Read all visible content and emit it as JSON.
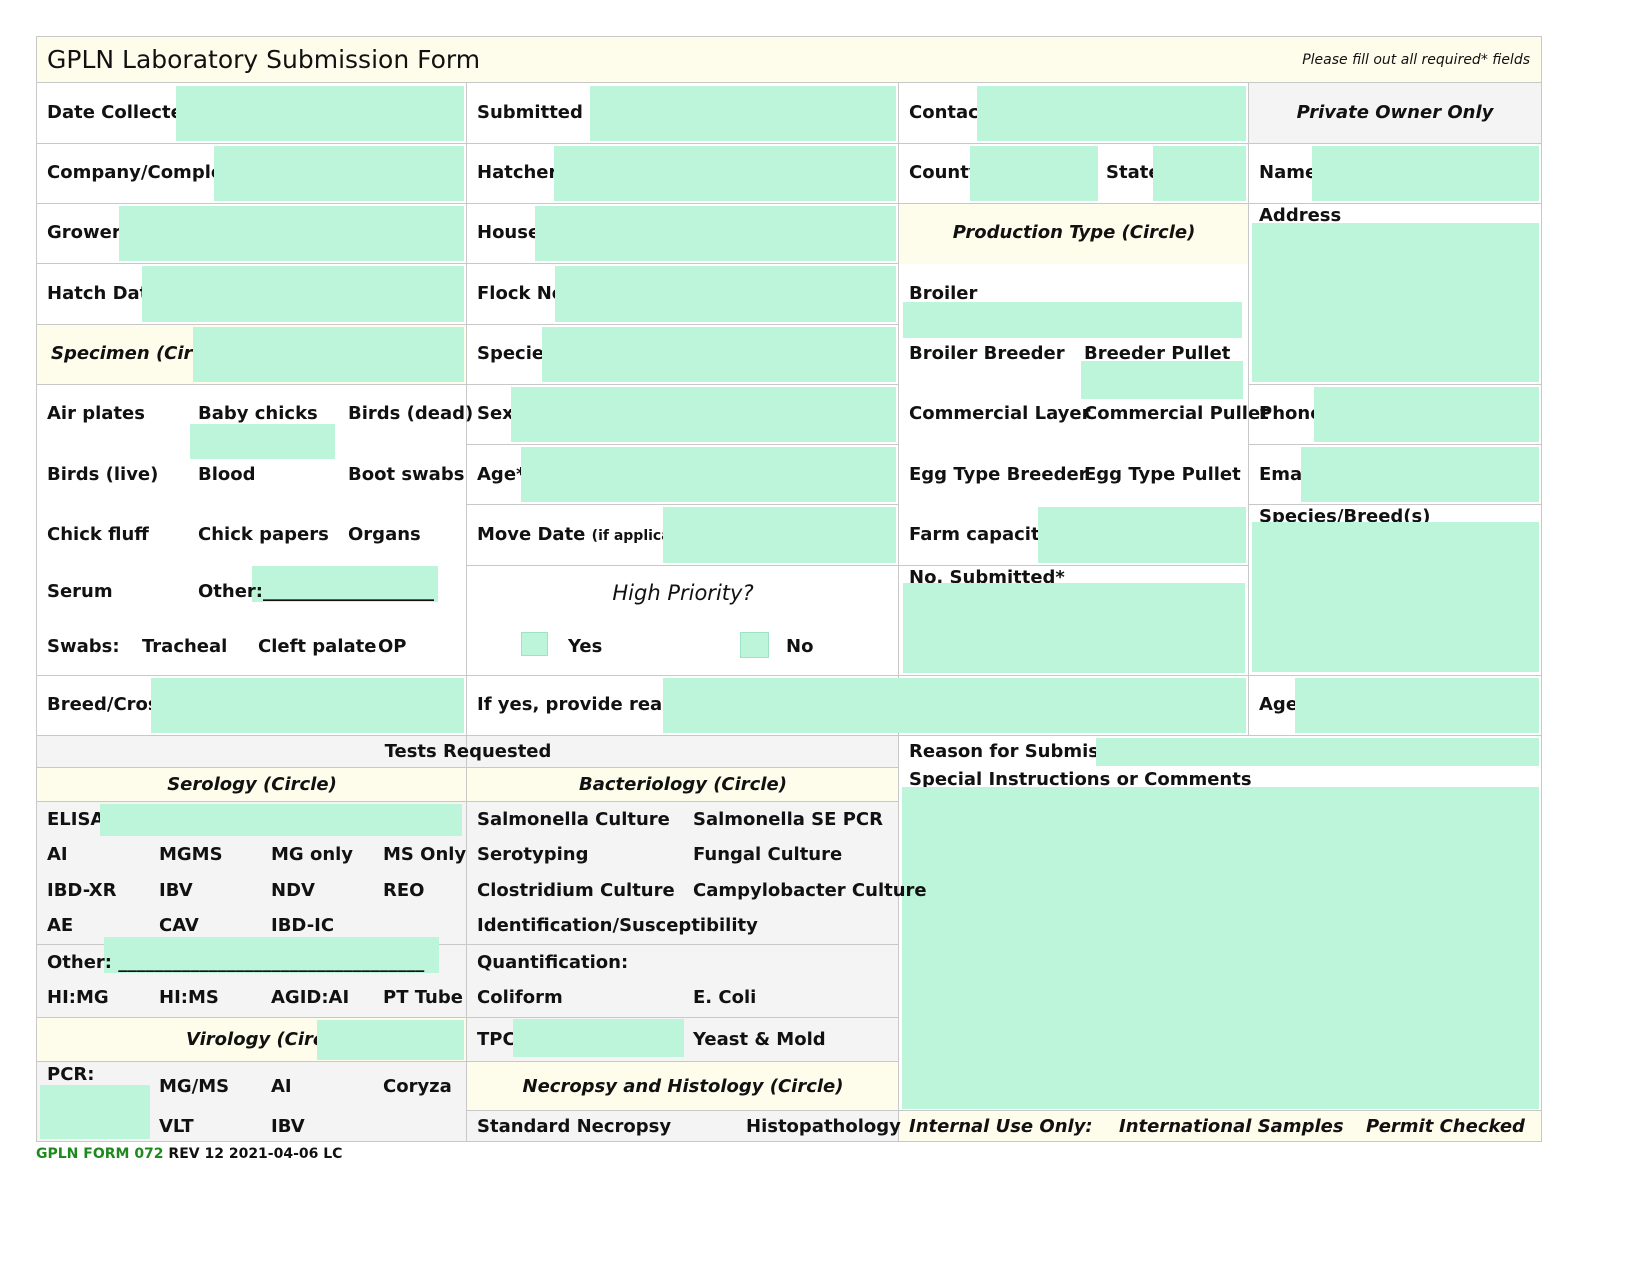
{
  "header": {
    "title": "GPLN Laboratory Submission Form",
    "note": "Please fill out all required* fields"
  },
  "labels": {
    "date_collected": "Date Collected*",
    "submitted_by": "Submitted By",
    "contact": "Contact",
    "private_owner": "Private Owner Only",
    "company": "Company/Complex*",
    "hatchery": "Hatchery",
    "county": "County",
    "state": "State",
    "name": "Name",
    "grower": "Grower*",
    "house": "House",
    "production_type": "Production Type (Circle)",
    "address": "Address",
    "hatch_date": "Hatch Date",
    "flock_no": "Flock No.",
    "broiler": "Broiler",
    "specimen": "Specimen (Circle)",
    "species": "Species",
    "broiler_breeder": "Broiler Breeder",
    "breeder_pullet": "Breeder Pullet",
    "sex": "Sex",
    "commercial_layer": "Commercial Layer",
    "commercial_pullet": "Commercial Pullet",
    "phone": "Phone",
    "age_star": "Age*",
    "egg_type_breeder": "Egg Type Breeder",
    "egg_type_pullet": "Egg Type Pullet",
    "email": "Email",
    "move_date": "Move Date",
    "move_date_note": "(if applicable)",
    "farm_capacity": "Farm capacity*",
    "species_breed": "Species/Breed(s)",
    "serum": "Serum",
    "other_line": "Other:___________________",
    "high_priority": "High Priority?",
    "no_submitted": "No. Submitted*",
    "swabs": "Swabs:",
    "tracheal": "Tracheal",
    "cleft_palate": "Cleft palate",
    "op": "OP",
    "yes": "Yes",
    "no": "No",
    "breed_cross": "Breed/Cross",
    "if_yes_reason": "If yes, provide reason:",
    "age": "Age",
    "tests_requested": "Tests Requested",
    "reason_submission": "Reason for Submission",
    "special_instructions": "Special Instructions or Comments",
    "serology": "Serology (Circle)",
    "bacteriology": "Bacteriology (Circle)",
    "elisa": "ELISA:",
    "sero_other": "Other: __________________________________",
    "virology": "Virology (Circle)",
    "pcr": "PCR:",
    "quantification": "Quantification:",
    "tpc": "TPC",
    "yeast_mold": "Yeast & Mold",
    "necropsy": "Necropsy and Histology (Circle)",
    "standard_necropsy": "Standard Necropsy",
    "histopathology": "Histopathology",
    "internal_use": "Internal Use Only:",
    "international_samples": "International Samples",
    "permit_checked": "Permit Checked"
  },
  "specimen_options": [
    "Air plates",
    "Baby chicks",
    "Birds (dead)",
    "Birds (live)",
    "Blood",
    "Boot swabs",
    "Chick fluff",
    "Chick papers",
    "Organs"
  ],
  "serology_rows": [
    [
      "AI",
      "MGMS",
      "MG only",
      "MS Only"
    ],
    [
      "IBD-XR",
      "IBV",
      "NDV",
      "REO"
    ],
    [
      "AE",
      "CAV",
      "IBD-IC",
      ""
    ]
  ],
  "hi_row": [
    "HI:MG",
    "HI:MS",
    "AGID:AI",
    "PT Tube"
  ],
  "virology_rows": [
    [
      "MG/MS",
      "AI",
      "Coryza"
    ],
    [
      "VLT",
      "IBV",
      ""
    ]
  ],
  "bacteriology_rows": [
    [
      "Salmonella Culture",
      "Salmonella SE PCR"
    ],
    [
      "Serotyping",
      "Fungal Culture"
    ],
    [
      "Clostridium Culture",
      "Campylobacter Culture"
    ],
    [
      "Identification/Susceptibility",
      ""
    ]
  ],
  "quant_row": [
    "Coliform",
    "E. Coli"
  ],
  "footer": {
    "form_id": "GPLN FORM 072",
    "rev": "REV 12 2021-04-06  LC"
  },
  "colors": {
    "field": "#bdf5da",
    "header_bg": "#fefdec",
    "gray_bg": "#f4f4f4",
    "footer_green": "#1e8a1e"
  }
}
